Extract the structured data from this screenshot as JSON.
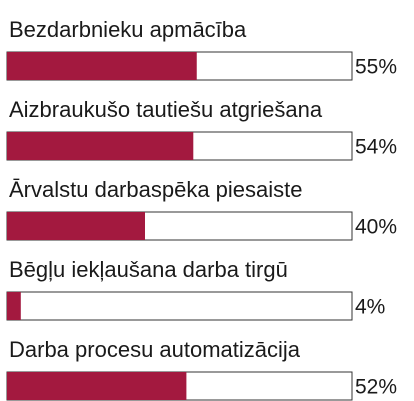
{
  "chart_data": {
    "type": "hbar",
    "categories": [
      "Bezdarbnieku apmācība",
      "Aizbraukušo tautiešu atgriešana",
      "Ārvalstu darbaspēka piesaiste",
      "Bēgļu iekļaušana darba tirgū",
      "Darba procesu automatizācija"
    ],
    "values": [
      55,
      54,
      40,
      4,
      52
    ],
    "value_labels": [
      "55%",
      "54%",
      "40%",
      "4%",
      "52%"
    ],
    "color": "#a3193f",
    "xlim": [
      0,
      100
    ]
  }
}
